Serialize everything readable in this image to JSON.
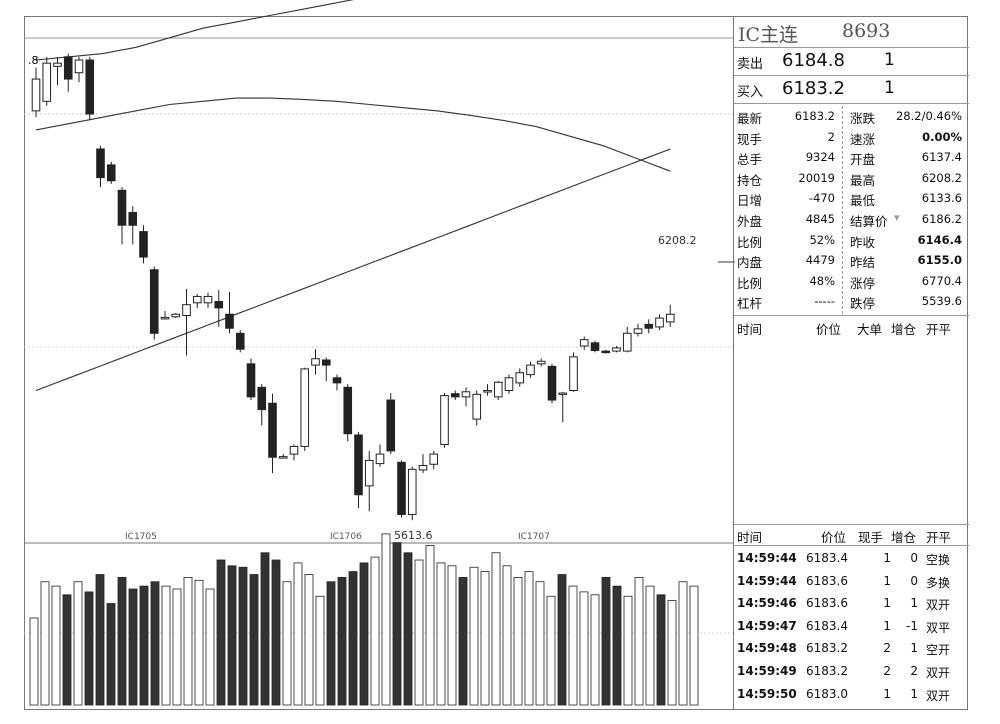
{
  "chart": {
    "high_marker": "6208.2",
    "low_marker": "5613.6",
    "left_marker": ".8",
    "contracts": [
      "IC1705",
      "IC1706",
      "IC1707"
    ]
  },
  "chart_data": {
    "type": "candlestick",
    "candles": [
      {
        "o": 6040,
        "c": 6090,
        "h": 6108,
        "l": 6030
      },
      {
        "o": 6055,
        "c": 6115,
        "h": 6125,
        "l": 6048
      },
      {
        "o": 6110,
        "c": 6115,
        "h": 6125,
        "l": 6080
      },
      {
        "o": 6125,
        "c": 6090,
        "h": 6130,
        "l": 6070
      },
      {
        "o": 6100,
        "c": 6120,
        "h": 6125,
        "l": 6085
      },
      {
        "o": 6120,
        "c": 6035,
        "h": 6125,
        "l": 6025
      },
      {
        "o": 5980,
        "c": 5935,
        "h": 5985,
        "l": 5920
      },
      {
        "o": 5955,
        "c": 5930,
        "h": 5960,
        "l": 5925
      },
      {
        "o": 5915,
        "c": 5860,
        "h": 5920,
        "l": 5830
      },
      {
        "o": 5880,
        "c": 5860,
        "h": 5890,
        "l": 5830
      },
      {
        "o": 5850,
        "c": 5810,
        "h": 5860,
        "l": 5800
      },
      {
        "o": 5790,
        "c": 5690,
        "h": 5795,
        "l": 5680
      },
      {
        "o": 5715,
        "c": 5715,
        "h": 5725,
        "l": 5712
      },
      {
        "o": 5716,
        "c": 5720,
        "h": 5722,
        "l": 5714
      },
      {
        "o": 5718,
        "c": 5735,
        "h": 5760,
        "l": 5655
      },
      {
        "o": 5738,
        "c": 5748,
        "h": 5752,
        "l": 5730
      },
      {
        "o": 5738,
        "c": 5748,
        "h": 5754,
        "l": 5730
      },
      {
        "o": 5740,
        "c": 5730,
        "h": 5758,
        "l": 5700
      },
      {
        "o": 5720,
        "c": 5698,
        "h": 5755,
        "l": 5690
      },
      {
        "o": 5690,
        "c": 5665,
        "h": 5695,
        "l": 5660
      },
      {
        "o": 5642,
        "c": 5590,
        "h": 5650,
        "l": 5585
      },
      {
        "o": 5605,
        "c": 5570,
        "h": 5610,
        "l": 5545
      },
      {
        "o": 5580,
        "c": 5495,
        "h": 5595,
        "l": 5470
      },
      {
        "o": 5496,
        "c": 5496,
        "h": 5500,
        "l": 5493
      },
      {
        "o": 5500,
        "c": 5512,
        "h": 5515,
        "l": 5490
      },
      {
        "o": 5512,
        "c": 5634,
        "h": 5636,
        "l": 5505
      },
      {
        "o": 5640,
        "c": 5650,
        "h": 5665,
        "l": 5625
      },
      {
        "o": 5648,
        "c": 5640,
        "h": 5652,
        "l": 5615
      },
      {
        "o": 5620,
        "c": 5612,
        "h": 5625,
        "l": 5600
      },
      {
        "o": 5605,
        "c": 5532,
        "h": 5610,
        "l": 5520
      },
      {
        "o": 5530,
        "c": 5436,
        "h": 5535,
        "l": 5415
      },
      {
        "o": 5450,
        "c": 5490,
        "h": 5505,
        "l": 5410
      },
      {
        "o": 5485,
        "c": 5500,
        "h": 5515,
        "l": 5480
      },
      {
        "o": 5585,
        "c": 5505,
        "h": 5596,
        "l": 5500
      },
      {
        "o": 5487,
        "c": 5405,
        "h": 5490,
        "l": 5400
      },
      {
        "o": 5405,
        "c": 5476,
        "h": 5480,
        "l": 5396
      },
      {
        "o": 5475,
        "c": 5482,
        "h": 5500,
        "l": 5470
      },
      {
        "o": 5484,
        "c": 5500,
        "h": 5505,
        "l": 5476
      },
      {
        "o": 5515,
        "c": 5592,
        "h": 5596,
        "l": 5510
      },
      {
        "o": 5595,
        "c": 5590,
        "h": 5600,
        "l": 5585
      },
      {
        "o": 5590,
        "c": 5598,
        "h": 5605,
        "l": 5575
      },
      {
        "o": 5555,
        "c": 5594,
        "h": 5600,
        "l": 5545
      },
      {
        "o": 5600,
        "c": 5600,
        "h": 5610,
        "l": 5592
      },
      {
        "o": 5590,
        "c": 5613,
        "h": 5615,
        "l": 5585
      },
      {
        "o": 5600,
        "c": 5620,
        "h": 5625,
        "l": 5595
      },
      {
        "o": 5612,
        "c": 5628,
        "h": 5635,
        "l": 5606
      },
      {
        "o": 5625,
        "c": 5640,
        "h": 5645,
        "l": 5620
      },
      {
        "o": 5642,
        "c": 5646,
        "h": 5650,
        "l": 5638
      },
      {
        "o": 5638,
        "c": 5585,
        "h": 5642,
        "l": 5580
      },
      {
        "o": 5595,
        "c": 5596,
        "h": 5598,
        "l": 5550
      },
      {
        "o": 5600,
        "c": 5653,
        "h": 5660,
        "l": 5598
      },
      {
        "o": 5670,
        "c": 5680,
        "h": 5685,
        "l": 5664
      },
      {
        "o": 5675,
        "c": 5663,
        "h": 5678,
        "l": 5660
      },
      {
        "o": 5662,
        "c": 5661,
        "h": 5664,
        "l": 5658
      },
      {
        "o": 5662,
        "c": 5667,
        "h": 5670,
        "l": 5660
      },
      {
        "o": 5662,
        "c": 5690,
        "h": 5700,
        "l": 5660
      },
      {
        "o": 5690,
        "c": 5697,
        "h": 5705,
        "l": 5685
      },
      {
        "o": 5704,
        "c": 5698,
        "h": 5712,
        "l": 5690
      },
      {
        "o": 5700,
        "c": 5714,
        "h": 5720,
        "l": 5695
      },
      {
        "o": 5708,
        "c": 5720,
        "h": 5735,
        "l": 5700
      }
    ],
    "volumes": [
      60,
      85,
      82,
      76,
      85,
      78,
      90,
      70,
      88,
      80,
      82,
      85,
      82,
      80,
      88,
      86,
      80,
      100,
      96,
      95,
      90,
      105,
      100,
      85,
      98,
      90,
      75,
      85,
      88,
      92,
      98,
      102,
      118,
      112,
      105,
      100,
      110,
      98,
      96,
      88,
      95,
      92,
      105,
      96,
      88,
      92,
      85,
      75,
      90,
      82,
      78,
      76,
      88,
      82,
      75,
      88,
      82,
      76,
      72,
      85,
      82
    ],
    "bands": {
      "upper": [
        6120,
        6125,
        6130,
        6140,
        6155,
        6170,
        6180,
        6190,
        6200,
        6210,
        6220,
        6230,
        6240,
        6250,
        6255,
        6260,
        6262,
        6265,
        6267,
        6268
      ],
      "middle": [
        6010,
        6020,
        6030,
        6040,
        6050,
        6055,
        6060,
        6060,
        6058,
        6055,
        6050,
        6045,
        6040,
        6033,
        6025,
        6015,
        6000,
        5985,
        5965,
        5945
      ],
      "lower": [
        5600,
        5620,
        5640,
        5660,
        5680,
        5700,
        5720,
        5740,
        5760,
        5780,
        5800,
        5820,
        5840,
        5860,
        5880,
        5900,
        5920,
        5940,
        5960,
        5980
      ]
    }
  },
  "panel": {
    "symbol": "IC主连",
    "code": "8693",
    "ask_label": "卖出",
    "ask_price": "6184.8",
    "ask_qty": "1",
    "bid_label": "买入",
    "bid_price": "6183.2",
    "bid_qty": "1",
    "stats_left": [
      {
        "k": "最新",
        "v": "6183.2"
      },
      {
        "k": "现手",
        "v": "2"
      },
      {
        "k": "总手",
        "v": "9324"
      },
      {
        "k": "持仓",
        "v": "20019"
      },
      {
        "k": "日增",
        "v": "-470"
      },
      {
        "k": "外盘",
        "v": "4845"
      },
      {
        "k": "比例",
        "v": "52%"
      },
      {
        "k": "内盘",
        "v": "4479"
      },
      {
        "k": "比例",
        "v": "48%"
      },
      {
        "k": "杠杆",
        "v": "-----"
      }
    ],
    "stats_right": [
      {
        "k": "涨跌",
        "v": "28.2/0.46%"
      },
      {
        "k": "速涨",
        "v": "0.00%"
      },
      {
        "k": "开盘",
        "v": "6137.4"
      },
      {
        "k": "最高",
        "v": "6208.2"
      },
      {
        "k": "最低",
        "v": "6133.6"
      },
      {
        "k": "结算价",
        "v": "6186.2"
      },
      {
        "k": "昨收",
        "v": "6146.4"
      },
      {
        "k": "昨结",
        "v": "6155.0"
      },
      {
        "k": "涨停",
        "v": "6770.4"
      },
      {
        "k": "跌停",
        "v": "5539.6"
      }
    ],
    "big_order_header": {
      "time": "时间",
      "price": "价位",
      "big": "大单",
      "inc": "增仓",
      "open": "开平"
    },
    "trades_header": {
      "time": "时间",
      "price": "价位",
      "qty": "现手",
      "inc": "增仓",
      "open": "开平"
    },
    "trades": [
      {
        "time": "14:59:44",
        "price": "6183.4",
        "qty": "1",
        "inc": "0",
        "type": "空换"
      },
      {
        "time": "14:59:44",
        "price": "6183.6",
        "qty": "1",
        "inc": "0",
        "type": "多换"
      },
      {
        "time": "14:59:46",
        "price": "6183.6",
        "qty": "1",
        "inc": "1",
        "type": "双开"
      },
      {
        "time": "14:59:47",
        "price": "6183.4",
        "qty": "1",
        "inc": "-1",
        "type": "双平"
      },
      {
        "time": "14:59:48",
        "price": "6183.2",
        "qty": "2",
        "inc": "1",
        "type": "空开"
      },
      {
        "time": "14:59:49",
        "price": "6183.2",
        "qty": "2",
        "inc": "2",
        "type": "双开"
      },
      {
        "time": "14:59:50",
        "price": "6183.0",
        "qty": "1",
        "inc": "1",
        "type": "双开"
      }
    ]
  }
}
